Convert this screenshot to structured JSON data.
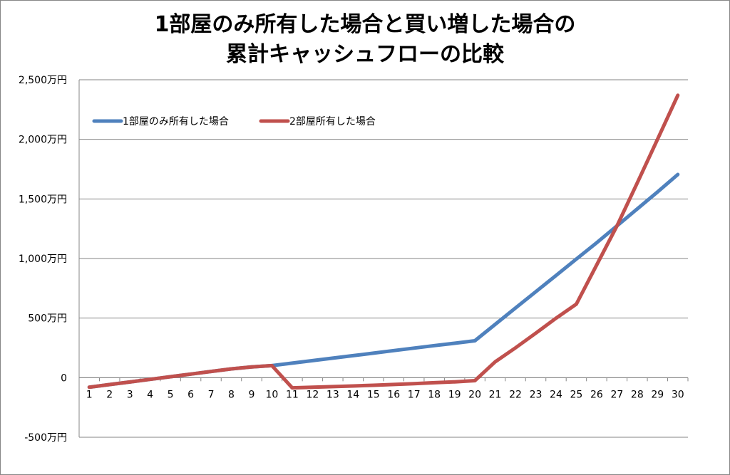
{
  "chart_data": {
    "type": "line",
    "title_lines": [
      "1部屋のみ所有した場合と買い増した場合の",
      "累計キャッシュフローの比較"
    ],
    "xlabel": "",
    "ylabel": "",
    "categories": [
      "1",
      "2",
      "3",
      "4",
      "5",
      "6",
      "7",
      "8",
      "9",
      "10",
      "11",
      "12",
      "13",
      "14",
      "15",
      "16",
      "17",
      "18",
      "19",
      "20",
      "21",
      "22",
      "23",
      "24",
      "25",
      "26",
      "27",
      "28",
      "29",
      "30"
    ],
    "ylim": [
      -500,
      2500
    ],
    "yticks": [
      -500,
      0,
      500,
      1000,
      1500,
      2000,
      2500
    ],
    "ytick_labels": [
      "-500万円",
      "0",
      "500万円",
      "1,000万円",
      "1,500万円",
      "2,000万円",
      "2,500万円"
    ],
    "grid": true,
    "legend_position": "top-left",
    "series": [
      {
        "name": "1部屋のみ所有した場合",
        "color": "#4F81BD",
        "values": [
          -80,
          -58,
          -36,
          -14,
          8,
          30,
          52,
          74,
          90,
          101,
          122,
          143,
          164,
          185,
          206,
          227,
          248,
          269,
          289,
          310,
          447,
          584,
          721,
          858,
          995,
          1132,
          1274,
          1416,
          1558,
          1705
        ]
      },
      {
        "name": "2部屋所有した場合",
        "color": "#C0504D",
        "values": [
          -80,
          -58,
          -36,
          -14,
          8,
          30,
          52,
          74,
          90,
          101,
          -85,
          -80,
          -75,
          -70,
          -64,
          -57,
          -50,
          -42,
          -35,
          -25,
          133,
          250,
          373,
          499,
          617,
          945,
          1273,
          1633,
          2000,
          2370
        ]
      }
    ]
  }
}
